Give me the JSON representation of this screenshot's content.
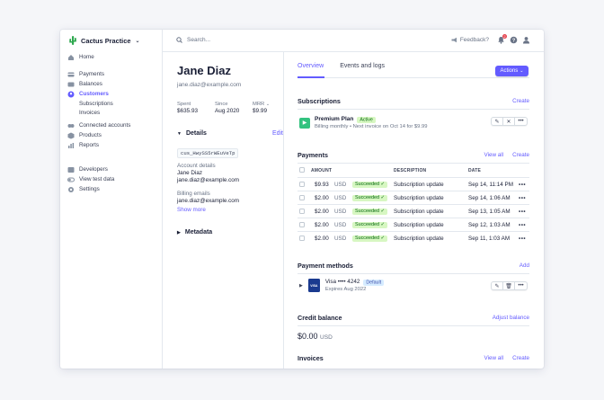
{
  "sidebar": {
    "brand": "Cactus Practice",
    "items": {
      "home": "Home",
      "payments": "Payments",
      "balances": "Balances",
      "customers": "Customers",
      "subscriptions": "Subscriptions",
      "invoices": "Invoices",
      "connected": "Connected accounts",
      "products": "Products",
      "reports": "Reports",
      "developers": "Developers",
      "test_data": "View test data",
      "settings": "Settings"
    }
  },
  "topbar": {
    "search_placeholder": "Search...",
    "feedback": "Feedback?",
    "notification_count": "2"
  },
  "customer": {
    "name": "Jane Diaz",
    "email": "jane.diaz@example.com",
    "stats": [
      {
        "label": "Spent",
        "value": "$635.93"
      },
      {
        "label": "Since",
        "value": "Aug 2020"
      },
      {
        "label": "MRR",
        "value": "$9.99"
      }
    ],
    "details_title": "Details",
    "edit": "Edit",
    "id": "cus_HwySS5rWEuVeTp",
    "account_details_label": "Account details",
    "account_name": "Jane Diaz",
    "account_email": "jane.diaz@example.com",
    "billing_emails_label": "Billing emails",
    "billing_email": "jane.diaz@example.com",
    "show_more": "Show more",
    "metadata": "Metadata"
  },
  "tabs": [
    "Overview",
    "Events and logs"
  ],
  "actions_label": "Actions",
  "subscriptions": {
    "title": "Subscriptions",
    "create": "Create",
    "plan_name": "Premium Plan",
    "status": "Active",
    "billing": "Billing monthly • Next invoice on Oct 14 for $9.99"
  },
  "payments": {
    "title": "Payments",
    "view_all": "View all",
    "create": "Create",
    "headers": {
      "amount": "AMOUNT",
      "description": "DESCRIPTION",
      "date": "DATE"
    },
    "rows": [
      {
        "amount": "$9.93",
        "currency": "USD",
        "status": "Succeeded",
        "description": "Subscription update",
        "date": "Sep 14, 11:14 PM"
      },
      {
        "amount": "$2.00",
        "currency": "USD",
        "status": "Succeeded",
        "description": "Subscription update",
        "date": "Sep 14, 1:06 AM"
      },
      {
        "amount": "$2.00",
        "currency": "USD",
        "status": "Succeeded",
        "description": "Subscription update",
        "date": "Sep 13, 1:05 AM"
      },
      {
        "amount": "$2.00",
        "currency": "USD",
        "status": "Succeeded",
        "description": "Subscription update",
        "date": "Sep 12, 1:03 AM"
      },
      {
        "amount": "$2.00",
        "currency": "USD",
        "status": "Succeeded",
        "description": "Subscription update",
        "date": "Sep 11, 1:03 AM"
      }
    ]
  },
  "payment_methods": {
    "title": "Payment methods",
    "add": "Add",
    "card_brand": "VISA",
    "card": "Visa •••• 4242",
    "default": "Default",
    "expires": "Expires Aug 2022"
  },
  "credit_balance": {
    "title": "Credit balance",
    "adjust": "Adjust balance",
    "amount": "$0.00",
    "currency": "USD"
  },
  "invoices": {
    "title": "Invoices",
    "view_all": "View all",
    "create": "Create"
  },
  "colors": {
    "accent": "#635bff",
    "success_bg": "#d7f7c2",
    "success_text": "#05690d"
  }
}
